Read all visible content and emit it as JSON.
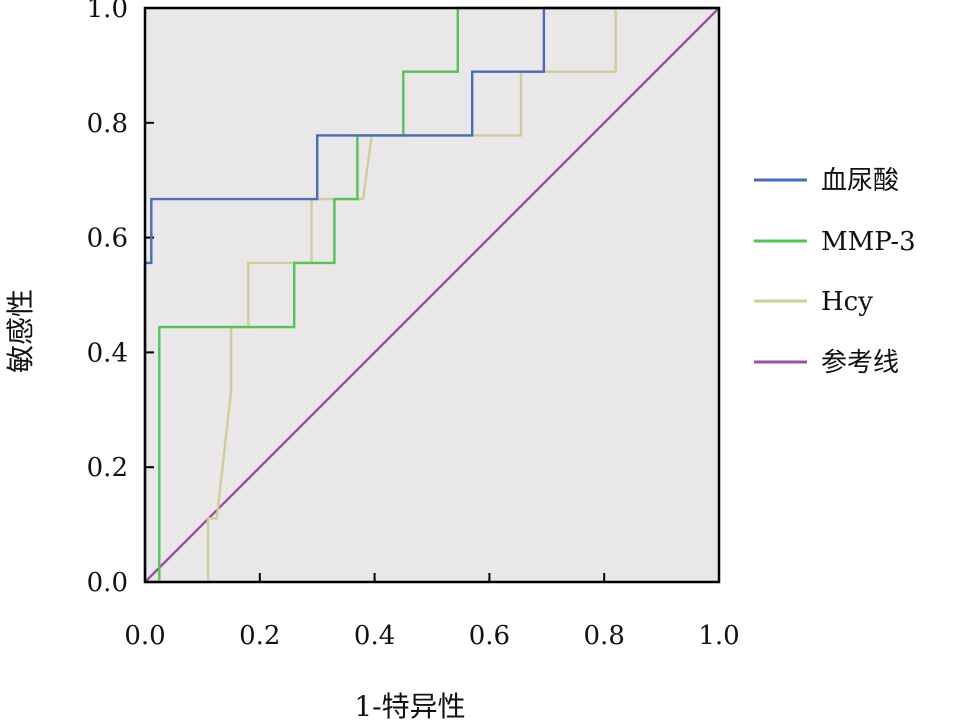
{
  "chart_data": {
    "type": "line",
    "title": "",
    "xlabel": "1-特异性",
    "ylabel": "敏感性",
    "xlim": [
      0,
      1
    ],
    "ylim": [
      0,
      1
    ],
    "x_ticks": [
      "0.0",
      "0.2",
      "0.4",
      "0.6",
      "0.8",
      "1.0"
    ],
    "y_ticks": [
      "0.0",
      "0.2",
      "0.4",
      "0.6",
      "0.8",
      "1.0"
    ],
    "grid": false,
    "legend_position": "right",
    "colors": {
      "plot_background": "#e9e7e8",
      "axis": "#000000"
    },
    "series": [
      {
        "name": "血尿酸",
        "color": "#4a6bb8",
        "points": [
          [
            0,
            0
          ],
          [
            0,
            0.556
          ],
          [
            0.011,
            0.556
          ],
          [
            0.011,
            0.667
          ],
          [
            0.3,
            0.667
          ],
          [
            0.3,
            0.778
          ],
          [
            0.57,
            0.778
          ],
          [
            0.57,
            0.889
          ],
          [
            0.695,
            0.889
          ],
          [
            0.695,
            1.0
          ],
          [
            1.0,
            1.0
          ]
        ]
      },
      {
        "name": "MMP-3",
        "color": "#55c25a",
        "points": [
          [
            0,
            0
          ],
          [
            0.025,
            0
          ],
          [
            0.025,
            0.444
          ],
          [
            0.26,
            0.444
          ],
          [
            0.26,
            0.556
          ],
          [
            0.33,
            0.556
          ],
          [
            0.33,
            0.667
          ],
          [
            0.37,
            0.667
          ],
          [
            0.37,
            0.778
          ],
          [
            0.45,
            0.778
          ],
          [
            0.45,
            0.889
          ],
          [
            0.545,
            0.889
          ],
          [
            0.545,
            1.0
          ],
          [
            1.0,
            1.0
          ]
        ]
      },
      {
        "name": "Hcy",
        "color": "#cfce9a",
        "points": [
          [
            0,
            0
          ],
          [
            0.11,
            0
          ],
          [
            0.11,
            0.111
          ],
          [
            0.125,
            0.111
          ],
          [
            0.15,
            0.333
          ],
          [
            0.15,
            0.444
          ],
          [
            0.18,
            0.444
          ],
          [
            0.18,
            0.556
          ],
          [
            0.29,
            0.556
          ],
          [
            0.29,
            0.667
          ],
          [
            0.38,
            0.667
          ],
          [
            0.395,
            0.778
          ],
          [
            0.655,
            0.778
          ],
          [
            0.655,
            0.889
          ],
          [
            0.82,
            0.889
          ],
          [
            0.82,
            1.0
          ],
          [
            1.0,
            1.0
          ]
        ]
      },
      {
        "name": "参考线",
        "color": "#9b4fa6",
        "points": [
          [
            0,
            0
          ],
          [
            1,
            1
          ]
        ]
      }
    ]
  }
}
